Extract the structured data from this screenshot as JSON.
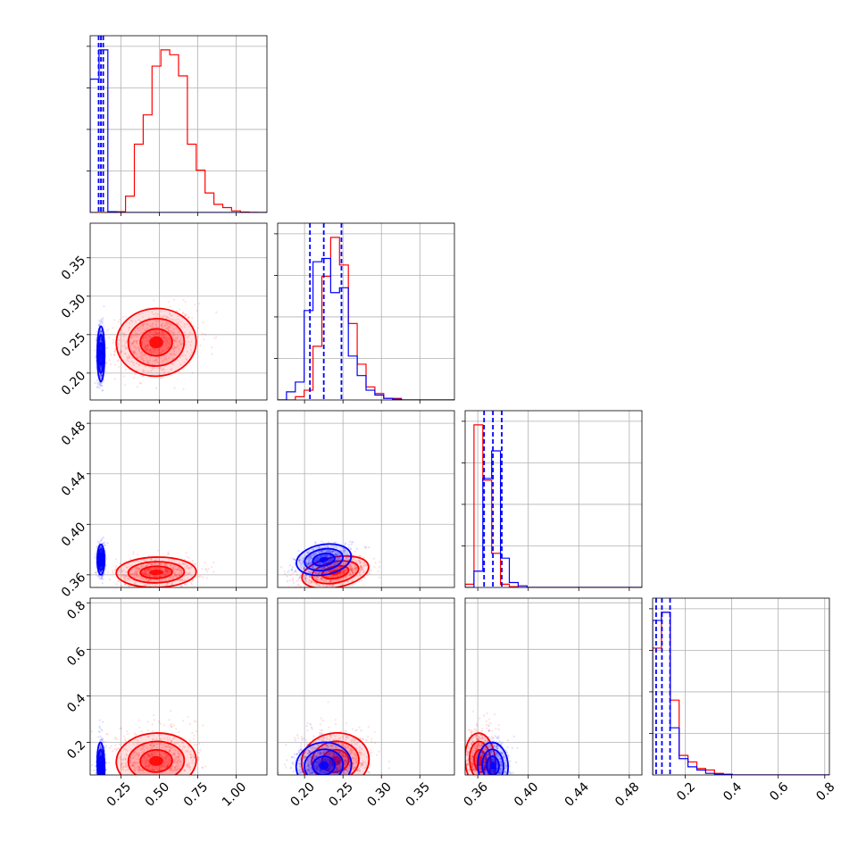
{
  "colors": {
    "series_a": "#ff0000",
    "series_b": "#0000ff",
    "grid": "#b0b0b0"
  },
  "chart_data": {
    "type": "corner",
    "grid": true,
    "legend": "none",
    "parameters": [
      {
        "range": [
          0.05,
          1.2
        ],
        "ticks": [
          0.25,
          0.5,
          0.75,
          1.0
        ],
        "tick_labels": [
          "0.25",
          "0.50",
          "0.75",
          "1.00"
        ]
      },
      {
        "range": [
          0.165,
          0.395
        ],
        "ticks": [
          0.2,
          0.25,
          0.3,
          0.35
        ],
        "tick_labels": [
          "0.20",
          "0.25",
          "0.30",
          "0.35"
        ]
      },
      {
        "range": [
          0.35,
          0.49
        ],
        "ticks": [
          0.36,
          0.4,
          0.44,
          0.48
        ],
        "tick_labels": [
          "0.36",
          "0.40",
          "0.44",
          "0.48"
        ]
      },
      {
        "range": [
          0.06,
          0.82
        ],
        "ticks": [
          0.2,
          0.4,
          0.6,
          0.8
        ],
        "tick_labels": [
          "0.2",
          "0.4",
          "0.6",
          "0.8"
        ]
      }
    ],
    "series": [
      {
        "color": "#ff0000",
        "mean": [
          0.48,
          0.24,
          0.362,
          0.12
        ],
        "sd": [
          0.13,
          0.022,
          0.006,
          0.06
        ],
        "rho": {
          "0-1": 0.15,
          "0-2": 0.05,
          "0-3": 0.1,
          "1-2": 0.45,
          "1-3": 0.35,
          "2-3": 0.2
        },
        "hist": [
          {
            "edges": [
              0.05,
              0.1075,
              0.165,
              0.2225,
              0.28,
              0.3375,
              0.395,
              0.4525,
              0.51,
              0.5675,
              0.625,
              0.6825,
              0.74,
              0.7975,
              0.855,
              0.9125,
              0.97,
              1.0275,
              1.085,
              1.1425,
              1.2
            ],
            "counts": [
              0,
              0,
              0,
              0.005,
              0.1,
              0.42,
              0.6,
              0.9,
              1.0,
              0.97,
              0.84,
              0.42,
              0.26,
              0.12,
              0.05,
              0.03,
              0.01,
              0.003,
              0.001,
              0
            ]
          },
          {
            "edges": [
              0.165,
              0.1765,
              0.188,
              0.1995,
              0.211,
              0.2225,
              0.234,
              0.2455,
              0.257,
              0.2685,
              0.28,
              0.2915,
              0.303,
              0.3145,
              0.326,
              0.3375,
              0.349,
              0.3605,
              0.372,
              0.3835,
              0.395
            ],
            "counts": [
              0,
              0,
              0.02,
              0.06,
              0.33,
              0.76,
              1.0,
              0.83,
              0.47,
              0.22,
              0.08,
              0.04,
              0.01,
              0.01,
              0,
              0,
              0,
              0,
              0,
              0
            ]
          },
          {
            "edges": [
              0.35,
              0.357,
              0.364,
              0.371,
              0.378,
              0.385,
              0.392,
              0.399,
              0.406,
              0.413,
              0.42,
              0.427,
              0.434,
              0.441,
              0.448,
              0.455,
              0.462,
              0.469,
              0.476,
              0.483,
              0.49
            ],
            "counts": [
              0.02,
              1.0,
              0.66,
              0.21,
              0.02,
              0.005,
              0,
              0,
              0,
              0,
              0,
              0,
              0,
              0,
              0,
              0,
              0,
              0,
              0,
              0
            ]
          },
          {
            "edges": [
              0.06,
              0.098,
              0.136,
              0.174,
              0.212,
              0.25,
              0.288,
              0.326,
              0.364,
              0.402,
              0.44,
              0.478,
              0.516,
              0.554,
              0.592,
              0.63,
              0.668,
              0.706,
              0.744,
              0.782,
              0.82
            ],
            "counts": [
              0.78,
              1.0,
              0.46,
              0.12,
              0.08,
              0.04,
              0.03,
              0.01,
              0.005,
              0,
              0,
              0,
              0,
              0,
              0,
              0,
              0,
              0,
              0,
              0
            ]
          }
        ]
      },
      {
        "color": "#0000ff",
        "mean": [
          0.12,
          0.225,
          0.372,
          0.1
        ],
        "sd": [
          0.012,
          0.018,
          0.006,
          0.05
        ],
        "rho": {
          "0-1": 0.0,
          "0-2": 0.0,
          "0-3": 0.05,
          "1-2": 0.4,
          "1-3": 0.3,
          "2-3": 0.15
        },
        "quantiles": [
          [
            0.105,
            0.12,
            0.135
          ],
          [
            0.207,
            0.225,
            0.248
          ],
          [
            0.365,
            0.372,
            0.379
          ],
          [
            0.075,
            0.1,
            0.135
          ]
        ],
        "hist": [
          {
            "edges": [
              0.05,
              0.1075,
              0.165,
              0.2225,
              0.28,
              0.3375,
              0.395,
              0.4525,
              0.51,
              0.5675,
              0.625,
              0.6825,
              0.74,
              0.7975,
              0.855,
              0.9125,
              0.97,
              1.0275,
              1.085,
              1.1425,
              1.2
            ],
            "counts": [
              0.82,
              1.0,
              0.005,
              0,
              0,
              0,
              0,
              0,
              0,
              0,
              0,
              0,
              0,
              0,
              0,
              0,
              0,
              0,
              0,
              0
            ]
          },
          {
            "edges": [
              0.165,
              0.1765,
              0.188,
              0.1995,
              0.211,
              0.2225,
              0.234,
              0.2455,
              0.257,
              0.2685,
              0.28,
              0.2915,
              0.303,
              0.3145,
              0.326,
              0.3375,
              0.349,
              0.3605,
              0.372,
              0.3835,
              0.395
            ],
            "counts": [
              0,
              0.05,
              0.11,
              0.55,
              0.85,
              0.87,
              0.66,
              0.69,
              0.27,
              0.15,
              0.06,
              0.03,
              0.01,
              0.005,
              0,
              0,
              0,
              0,
              0,
              0
            ]
          },
          {
            "edges": [
              0.35,
              0.357,
              0.364,
              0.371,
              0.378,
              0.385,
              0.392,
              0.399,
              0.406,
              0.413,
              0.42,
              0.427,
              0.434,
              0.441,
              0.448,
              0.455,
              0.462,
              0.469,
              0.476,
              0.483,
              0.49
            ],
            "counts": [
              0,
              0.1,
              0.67,
              0.84,
              0.18,
              0.03,
              0.01,
              0,
              0,
              0,
              0,
              0,
              0,
              0,
              0,
              0,
              0,
              0,
              0,
              0
            ]
          },
          {
            "edges": [
              0.06,
              0.098,
              0.136,
              0.174,
              0.212,
              0.25,
              0.288,
              0.326,
              0.364,
              0.402,
              0.44,
              0.478,
              0.516,
              0.554,
              0.592,
              0.63,
              0.668,
              0.706,
              0.744,
              0.782,
              0.82
            ],
            "counts": [
              0.95,
              1.0,
              0.29,
              0.1,
              0.05,
              0.03,
              0.01,
              0.005,
              0.002,
              0,
              0,
              0,
              0,
              0,
              0,
              0,
              0,
              0,
              0,
              0
            ]
          }
        ]
      }
    ]
  }
}
